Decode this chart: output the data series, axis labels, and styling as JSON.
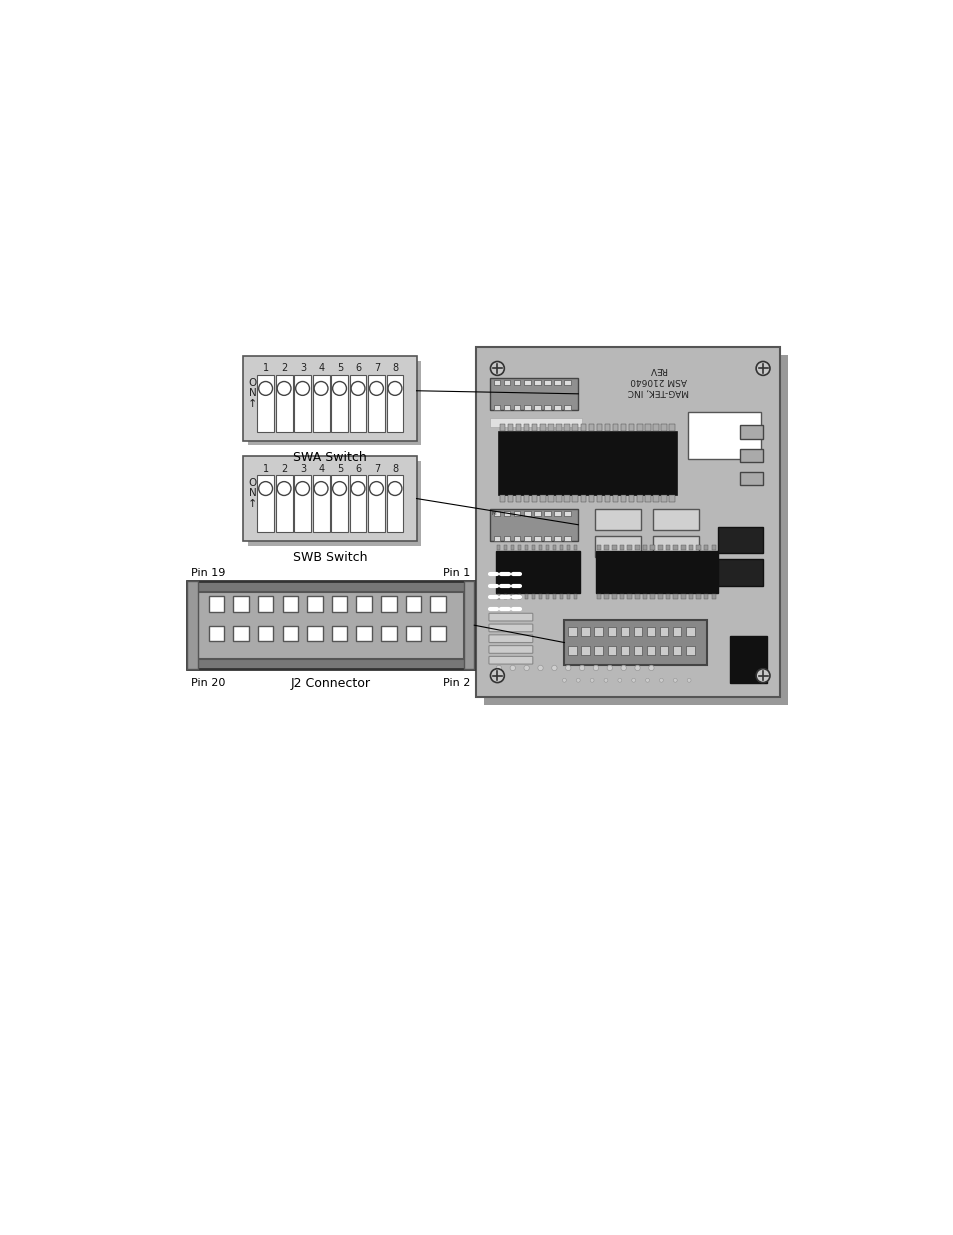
{
  "bg_color": "#ffffff",
  "board_color": "#b8b8b8",
  "board_shadow": "#888888",
  "board_border": "#555555",
  "switch_bg": "#cccccc",
  "switch_border": "#555555",
  "switch_cell_bg": "#ffffff",
  "switch_circle_fill": "#ffffff",
  "switch_circle_edge": "#444444",
  "text_color": "#000000",
  "swa_label": "SWA Switch",
  "swb_label": "SWB Switch",
  "j2_label": "J2 Connector",
  "pin19_label": "Pin 19",
  "pin20_label": "Pin 20",
  "pin1_label": "Pin 1",
  "pin2_label": "Pin 2",
  "board_text1": "REV",
  "board_text2": "ASM 210640",
  "board_text3": "MAG-TEK, INC"
}
